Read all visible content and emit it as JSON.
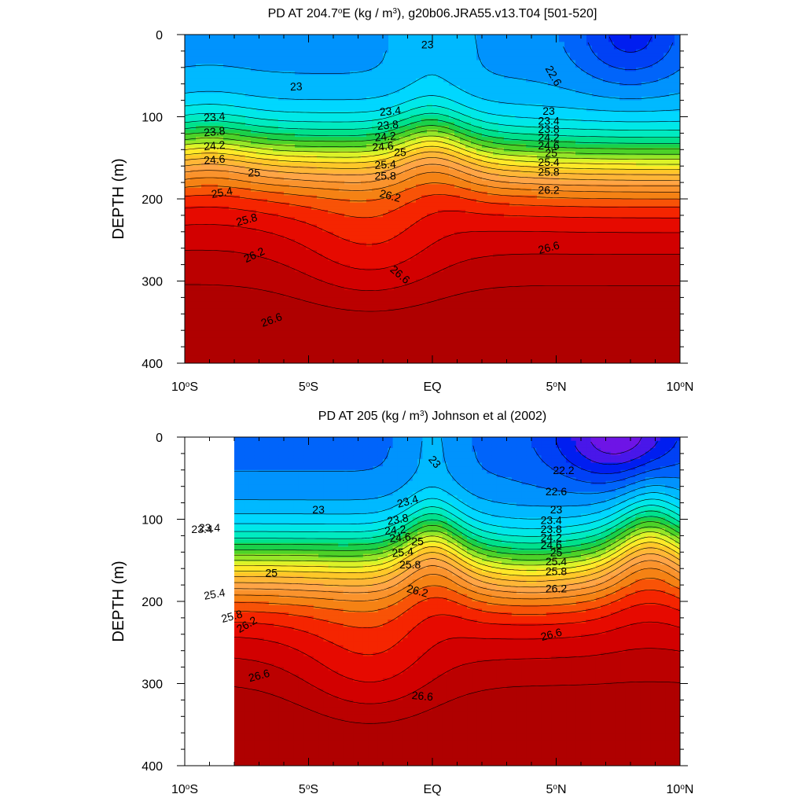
{
  "chart_data": [
    {
      "type": "contour",
      "title_html": "PD AT 204.7<tspan baseline-shift='super' font-size='10'>o</tspan>E (kg / m<tspan baseline-shift='super' font-size='10'>3</tspan>), g20b06.JRA55.v13.T04 [501-520]",
      "title": "PD AT 204.7oE (kg / m3), g20b06.JRA55.v13.T04 [501-520]",
      "ylabel": "DEPTH (m)",
      "xlabel": "",
      "xlim": [
        -10,
        10
      ],
      "ylim": [
        0,
        400
      ],
      "x_ticks": [
        {
          "value": -10,
          "label": "10",
          "sup": "o",
          "suffix": "S"
        },
        {
          "value": -5,
          "label": "5",
          "sup": "o",
          "suffix": "S"
        },
        {
          "value": 0,
          "label": "EQ",
          "sup": "",
          "suffix": ""
        },
        {
          "value": 5,
          "label": "5",
          "sup": "o",
          "suffix": "N"
        },
        {
          "value": 10,
          "label": "10",
          "sup": "o",
          "suffix": "N"
        }
      ],
      "y_ticks": [
        0,
        100,
        200,
        300,
        400
      ],
      "data_xrange": [
        -10,
        10
      ],
      "contour_interval": 0.2,
      "contour_labels": [
        {
          "text": "23",
          "x": -0.2,
          "y": 12,
          "rot": 0
        },
        {
          "text": "22.6",
          "x": 4.9,
          "y": 50,
          "rot": 60
        },
        {
          "text": "23",
          "x": -5.5,
          "y": 63,
          "rot": -3
        },
        {
          "text": "23.4",
          "x": -8.8,
          "y": 100,
          "rot": -5
        },
        {
          "text": "23.8",
          "x": -8.8,
          "y": 118,
          "rot": -5
        },
        {
          "text": "24.2",
          "x": -8.8,
          "y": 135,
          "rot": -5
        },
        {
          "text": "24.6",
          "x": -8.8,
          "y": 152,
          "rot": -5
        },
        {
          "text": "25",
          "x": -7.2,
          "y": 168,
          "rot": 0
        },
        {
          "text": "25.4",
          "x": -8.5,
          "y": 192,
          "rot": -10
        },
        {
          "text": "25.8",
          "x": -7.5,
          "y": 225,
          "rot": -15
        },
        {
          "text": "26.2",
          "x": -7.2,
          "y": 268,
          "rot": -25
        },
        {
          "text": "26.6",
          "x": -6.5,
          "y": 347,
          "rot": -20
        },
        {
          "text": "23.4",
          "x": -1.7,
          "y": 93,
          "rot": -5
        },
        {
          "text": "23.8",
          "x": -1.8,
          "y": 110,
          "rot": -5
        },
        {
          "text": "24.2",
          "x": -1.9,
          "y": 124,
          "rot": -5
        },
        {
          "text": "24.6",
          "x": -2.0,
          "y": 136,
          "rot": -5
        },
        {
          "text": "25",
          "x": -1.3,
          "y": 143,
          "rot": 0
        },
        {
          "text": "25.4",
          "x": -1.9,
          "y": 158,
          "rot": -3
        },
        {
          "text": "25.8",
          "x": -1.9,
          "y": 172,
          "rot": 0
        },
        {
          "text": "26.2",
          "x": -1.7,
          "y": 196,
          "rot": 15
        },
        {
          "text": "26.6",
          "x": -1.3,
          "y": 292,
          "rot": 40
        },
        {
          "text": "23",
          "x": 4.7,
          "y": 93,
          "rot": 0
        },
        {
          "text": "23.4",
          "x": 4.7,
          "y": 105,
          "rot": 0
        },
        {
          "text": "23.8",
          "x": 4.7,
          "y": 115,
          "rot": 0
        },
        {
          "text": "24.2",
          "x": 4.7,
          "y": 125,
          "rot": 0
        },
        {
          "text": "24.6",
          "x": 4.7,
          "y": 135,
          "rot": 0
        },
        {
          "text": "25",
          "x": 4.8,
          "y": 144,
          "rot": 0
        },
        {
          "text": "25.4",
          "x": 4.7,
          "y": 155,
          "rot": 0
        },
        {
          "text": "25.8",
          "x": 4.7,
          "y": 167,
          "rot": 0
        },
        {
          "text": "26.2",
          "x": 4.7,
          "y": 189,
          "rot": 0
        },
        {
          "text": "26.6",
          "x": 4.7,
          "y": 259,
          "rot": -15
        }
      ]
    },
    {
      "type": "contour",
      "title_html": "PD AT 205 (kg / m<tspan baseline-shift='super' font-size='10'>3</tspan>) Johnson et al (2002)",
      "title": "PD AT 205 (kg / m3) Johnson et al (2002)",
      "ylabel": "DEPTH (m)",
      "xlabel": "",
      "xlim": [
        -10,
        10
      ],
      "ylim": [
        0,
        400
      ],
      "x_ticks": [
        {
          "value": -10,
          "label": "10",
          "sup": "o",
          "suffix": "S"
        },
        {
          "value": -5,
          "label": "5",
          "sup": "o",
          "suffix": "S"
        },
        {
          "value": 0,
          "label": "EQ",
          "sup": "",
          "suffix": ""
        },
        {
          "value": 5,
          "label": "5",
          "sup": "o",
          "suffix": "N"
        },
        {
          "value": 10,
          "label": "10",
          "sup": "o",
          "suffix": "N"
        }
      ],
      "y_ticks": [
        0,
        100,
        200,
        300,
        400
      ],
      "data_xrange": [
        -8,
        10
      ],
      "contour_interval": 0.2,
      "contour_labels": [
        {
          "text": "23",
          "x": 0.1,
          "y": 30,
          "rot": 50
        },
        {
          "text": "22.2",
          "x": 5.3,
          "y": 40,
          "rot": 0
        },
        {
          "text": "22.6",
          "x": 5.0,
          "y": 66,
          "rot": 0
        },
        {
          "text": "23",
          "x": -4.6,
          "y": 88,
          "rot": 0
        },
        {
          "text": "23",
          "x": 5.0,
          "y": 88,
          "rot": 0
        },
        {
          "text": "23.4",
          "x": -9.0,
          "y": 110,
          "rot": 0
        },
        {
          "text": "23.4",
          "x": -1.0,
          "y": 78,
          "rot": -15
        },
        {
          "text": "23.8",
          "x": -1.4,
          "y": 100,
          "rot": -10
        },
        {
          "text": "24.2",
          "x": -1.5,
          "y": 113,
          "rot": -5
        },
        {
          "text": "24.6",
          "x": -1.3,
          "y": 122,
          "rot": -5
        },
        {
          "text": "25",
          "x": -0.6,
          "y": 127,
          "rot": 0
        },
        {
          "text": "25.4",
          "x": -1.2,
          "y": 140,
          "rot": -5
        },
        {
          "text": "25.8",
          "x": -0.9,
          "y": 155,
          "rot": 0
        },
        {
          "text": "26.2",
          "x": -0.6,
          "y": 187,
          "rot": 15
        },
        {
          "text": "26.6",
          "x": -0.4,
          "y": 315,
          "rot": 5
        },
        {
          "text": "23.4",
          "x": 4.8,
          "y": 101,
          "rot": 0
        },
        {
          "text": "23.8",
          "x": 4.8,
          "y": 112,
          "rot": 0
        },
        {
          "text": "24.2",
          "x": 4.8,
          "y": 122,
          "rot": 0
        },
        {
          "text": "24.6",
          "x": 4.8,
          "y": 131,
          "rot": 0
        },
        {
          "text": "25",
          "x": 5.0,
          "y": 140,
          "rot": 0
        },
        {
          "text": "25.4",
          "x": 5.0,
          "y": 151,
          "rot": 0
        },
        {
          "text": "25.8",
          "x": 5.0,
          "y": 163,
          "rot": 0
        },
        {
          "text": "26.2",
          "x": 5.0,
          "y": 184,
          "rot": 0
        },
        {
          "text": "23.4",
          "x": -9.3,
          "y": 112,
          "rot": 0
        },
        {
          "text": "25",
          "x": -6.5,
          "y": 165,
          "rot": 0
        },
        {
          "text": "25.4",
          "x": -8.8,
          "y": 191,
          "rot": -10
        },
        {
          "text": "25.8",
          "x": -8.1,
          "y": 218,
          "rot": -15
        },
        {
          "text": "26.2",
          "x": -7.5,
          "y": 228,
          "rot": -30
        },
        {
          "text": "26.6",
          "x": -7.0,
          "y": 290,
          "rot": -15
        },
        {
          "text": "26.6",
          "x": 4.8,
          "y": 240,
          "rot": -15
        }
      ]
    }
  ]
}
